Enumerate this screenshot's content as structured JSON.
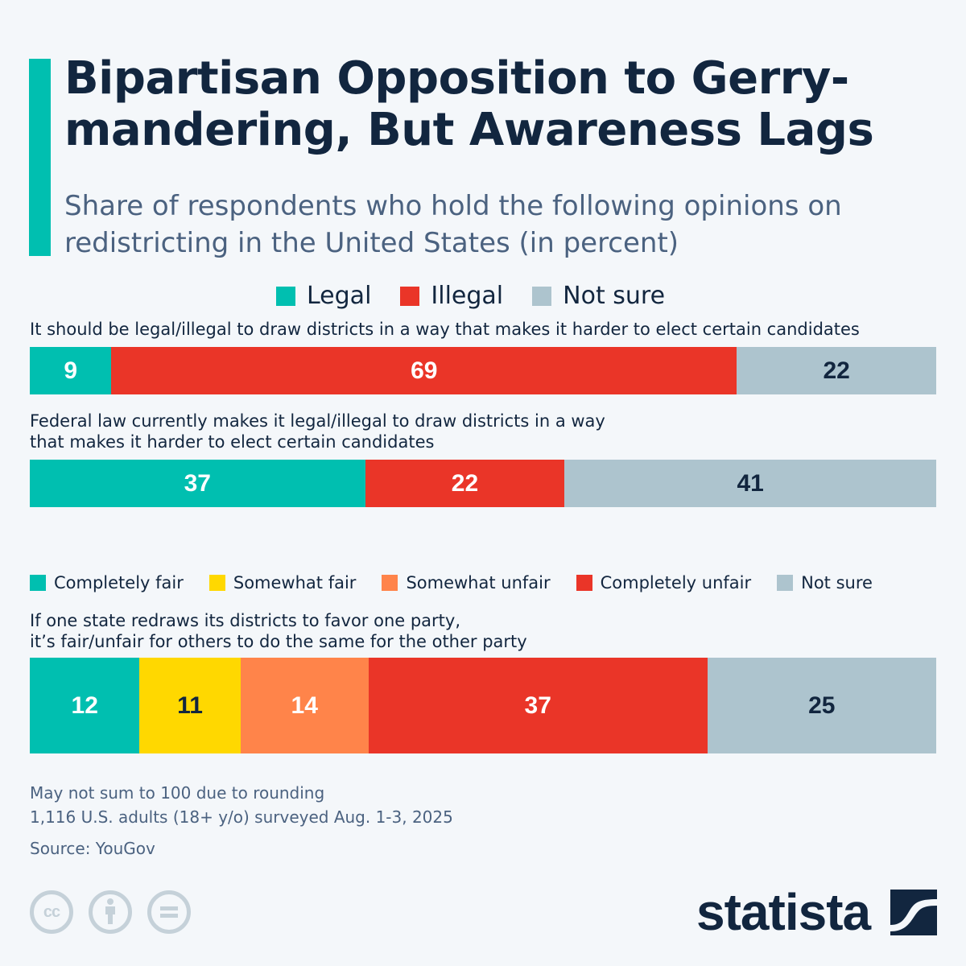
{
  "header": {
    "title": "Bipartisan Opposition to Gerry-mandering, But Awareness Lags",
    "subtitle": "Share of respondents who hold the following opinions on redistricting in the United States (in percent)"
  },
  "legend_top": [
    {
      "label": "Legal",
      "color": "#00bfb0"
    },
    {
      "label": "Illegal",
      "color": "#ea3528"
    },
    {
      "label": "Not sure",
      "color": "#adc4ce"
    }
  ],
  "legend_bottom": [
    {
      "label": "Completely fair",
      "color": "#00bfb0"
    },
    {
      "label": "Somewhat fair",
      "color": "#ffd800"
    },
    {
      "label": "Somewhat unfair",
      "color": "#ff844a"
    },
    {
      "label": "Completely unfair",
      "color": "#ea3528"
    },
    {
      "label": "Not sure",
      "color": "#adc4ce"
    }
  ],
  "chart_data": [
    {
      "type": "bar",
      "orientation": "horizontal-stacked-100",
      "title": "It should be legal/illegal to draw districts in a way that makes it harder to elect certain candidates",
      "categories": [
        "Legal",
        "Illegal",
        "Not sure"
      ],
      "values": [
        9,
        69,
        22
      ],
      "colors": [
        "#00bfb0",
        "#ea3528",
        "#adc4ce"
      ],
      "label_colors": [
        "#ffffff",
        "#ffffff",
        "#12263f"
      ]
    },
    {
      "type": "bar",
      "orientation": "horizontal-stacked-100",
      "title": "Federal law currently makes it legal/illegal to draw districts in a way that makes it harder to elect certain candidates",
      "categories": [
        "Legal",
        "Illegal",
        "Not sure"
      ],
      "values": [
        37,
        22,
        41
      ],
      "colors": [
        "#00bfb0",
        "#ea3528",
        "#adc4ce"
      ],
      "label_colors": [
        "#ffffff",
        "#ffffff",
        "#12263f"
      ]
    },
    {
      "type": "bar",
      "orientation": "horizontal-stacked-100",
      "title": "If one state redraws its districts to favor one party, it’s fair/unfair for others to do the same for the other party",
      "categories": [
        "Completely fair",
        "Somewhat fair",
        "Somewhat unfair",
        "Completely unfair",
        "Not sure"
      ],
      "values": [
        12,
        11,
        14,
        37,
        25
      ],
      "colors": [
        "#00bfb0",
        "#ffd800",
        "#ff844a",
        "#ea3528",
        "#adc4ce"
      ],
      "label_colors": [
        "#ffffff",
        "#12263f",
        "#ffffff",
        "#ffffff",
        "#12263f"
      ]
    }
  ],
  "questions": {
    "q1": "It should be legal/illegal to draw districts in a way that makes it harder to elect certain candidates",
    "q2_line1": "Federal law currently makes it legal/illegal to draw districts in a way",
    "q2_line2": "that makes it harder to elect certain candidates",
    "q3_line1": "If one state redraws its districts to favor one party,",
    "q3_line2": "it’s fair/unfair for others to do the same for the other party"
  },
  "footer": {
    "note1": "May not sum to 100 due to rounding",
    "note2": "1,116 U.S. adults (18+ y/o) surveyed Aug. 1-3, 2025",
    "source": "Source: YouGov",
    "brand": "statista",
    "license_icons": [
      "cc-icon",
      "attribution-icon",
      "no-derivatives-icon"
    ],
    "cc_text": "cc"
  }
}
